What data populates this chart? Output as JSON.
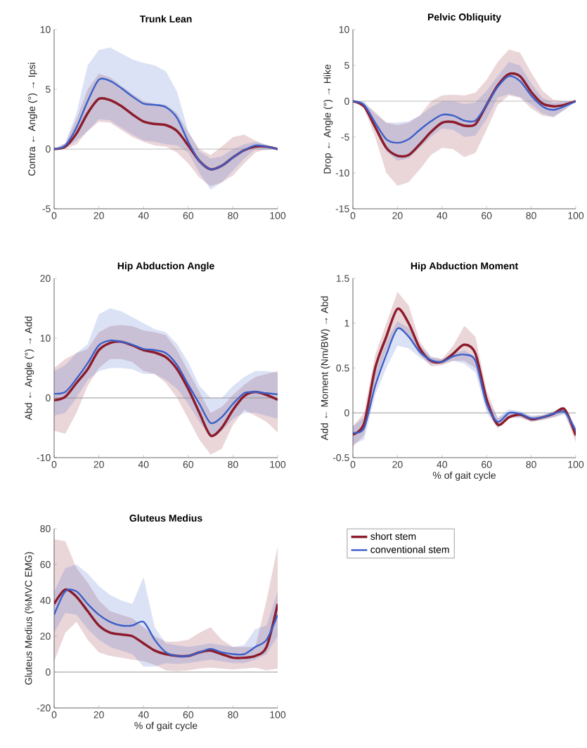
{
  "chart_data": [
    {
      "type": "line",
      "title": "Trunk Lean",
      "ylabel": "Contra ← Angle (°) → Ipsi",
      "x": [
        0,
        5,
        10,
        15,
        20,
        25,
        30,
        35,
        40,
        45,
        50,
        55,
        60,
        65,
        70,
        75,
        80,
        85,
        90,
        95,
        100
      ],
      "xlim": [
        0,
        100
      ],
      "xticks": [
        0,
        20,
        40,
        60,
        80,
        100
      ],
      "ylim": [
        -5,
        10
      ],
      "yticks": [
        -5,
        0,
        5,
        10
      ],
      "ref_lines": [
        {
          "axis": "y",
          "value": 0,
          "color": "#8c8c8c"
        }
      ],
      "series": [
        {
          "color": "#8c1c2c",
          "values": [
            0,
            0.2,
            1.3,
            3.0,
            4.2,
            4.1,
            3.6,
            2.9,
            2.3,
            2.1,
            2.0,
            1.5,
            0.3,
            -1.0,
            -1.7,
            -1.4,
            -0.7,
            -0.1,
            0.2,
            0.2,
            0
          ],
          "upper": [
            0,
            0.5,
            2.5,
            5,
            6.3,
            6,
            5.3,
            4.6,
            4,
            3.8,
            3.7,
            3,
            1.4,
            0,
            -0.5,
            0.2,
            1,
            1.2,
            0.7,
            0.3,
            0
          ],
          "lower": [
            0,
            0,
            0.4,
            1.5,
            2.3,
            2.2,
            1.6,
            1,
            0.6,
            0.3,
            0.2,
            -0.3,
            -1.2,
            -2.4,
            -3.1,
            -2.8,
            -2.2,
            -1.2,
            -0.3,
            0,
            0
          ]
        },
        {
          "color": "#3b5fc8",
          "values": [
            0,
            0.3,
            1.8,
            4,
            5.8,
            5.7,
            5.1,
            4.4,
            3.8,
            3.7,
            3.5,
            2.6,
            0.6,
            -1.0,
            -1.7,
            -1.4,
            -0.7,
            -0.1,
            0.3,
            0.2,
            0
          ],
          "upper": [
            0,
            0.5,
            3,
            7,
            8.3,
            8.5,
            8,
            7.5,
            7.2,
            7,
            6.5,
            4.8,
            1.5,
            -0.2,
            -0.8,
            -0.6,
            0,
            0.4,
            0.6,
            0.4,
            0
          ],
          "lower": [
            0,
            0.1,
            0.7,
            1.5,
            2.5,
            2.4,
            1.8,
            1.2,
            0.7,
            0.6,
            0.4,
            0.3,
            -0.3,
            -2,
            -3.4,
            -2.8,
            -1.8,
            -0.8,
            0,
            -0.1,
            0
          ]
        }
      ]
    },
    {
      "type": "line",
      "title": "Pelvic Obliquity",
      "ylabel": "Drop ← Angle (°) → Hike",
      "x": [
        0,
        5,
        10,
        15,
        20,
        25,
        30,
        35,
        40,
        45,
        50,
        55,
        60,
        65,
        70,
        75,
        80,
        85,
        90,
        95,
        100
      ],
      "xlim": [
        0,
        100
      ],
      "xticks": [
        0,
        20,
        40,
        60,
        80,
        100
      ],
      "ylim": [
        -15,
        10
      ],
      "yticks": [
        -15,
        -10,
        -5,
        0,
        5,
        10
      ],
      "ref_lines": [
        {
          "axis": "y",
          "value": 0,
          "color": "#8c8c8c"
        }
      ],
      "series": [
        {
          "color": "#8c1c2c",
          "values": [
            0,
            -0.7,
            -3.6,
            -6.5,
            -7.6,
            -7.5,
            -6,
            -4.3,
            -3,
            -2.9,
            -3.4,
            -3.2,
            -0.5,
            2.2,
            3.8,
            3.5,
            1.3,
            -0.3,
            -0.7,
            -0.5,
            0
          ],
          "upper": [
            0,
            -0.3,
            -1.5,
            -3,
            -3.3,
            -3.0,
            -2,
            0,
            0.8,
            0.9,
            0.8,
            1.2,
            3,
            5.5,
            7.2,
            6.8,
            4,
            1.5,
            0.2,
            0,
            0
          ],
          "lower": [
            0,
            -1,
            -5,
            -10,
            -11.8,
            -11.3,
            -9.5,
            -7.5,
            -6.5,
            -6.7,
            -7.8,
            -7.2,
            -4,
            -0.5,
            0.8,
            0.5,
            -1,
            -2,
            -2.2,
            -1.2,
            0
          ]
        },
        {
          "color": "#3b5fc8",
          "values": [
            0,
            -0.5,
            -3,
            -5.3,
            -5.8,
            -5.3,
            -4,
            -2.8,
            -1.9,
            -2.0,
            -2.7,
            -2.7,
            -0.5,
            2,
            3.5,
            2.8,
            0.8,
            -0.7,
            -1.2,
            -0.7,
            0
          ],
          "upper": [
            0,
            0,
            -1.8,
            -3,
            -3,
            -2.8,
            -2,
            -0.8,
            0,
            0,
            -0.4,
            -0.2,
            1.5,
            3.5,
            5.5,
            5,
            2.5,
            0.5,
            -0.2,
            0,
            0
          ],
          "lower": [
            0,
            -0.8,
            -4,
            -7,
            -8.3,
            -8,
            -6.5,
            -5,
            -3.8,
            -4,
            -5,
            -4.8,
            -2.5,
            0.5,
            1,
            0.6,
            -0.5,
            -1.7,
            -2.2,
            -1.2,
            0
          ]
        }
      ]
    },
    {
      "type": "line",
      "title": "Hip Abduction Angle",
      "ylabel": "Abd ← Angle (°) → Add",
      "x": [
        0,
        5,
        10,
        15,
        20,
        25,
        30,
        35,
        40,
        45,
        50,
        55,
        60,
        65,
        70,
        75,
        80,
        85,
        90,
        95,
        100
      ],
      "xlim": [
        0,
        100
      ],
      "xticks": [
        0,
        20,
        40,
        60,
        80,
        100
      ],
      "ylim": [
        -10,
        20
      ],
      "yticks": [
        -10,
        0,
        10,
        20
      ],
      "ref_lines": [
        {
          "axis": "y",
          "value": 0,
          "color": "#8c8c8c"
        }
      ],
      "series": [
        {
          "color": "#8c1c2c",
          "values": [
            -0.4,
            0.2,
            2.5,
            4.8,
            8.0,
            9.2,
            9.4,
            8.8,
            8.0,
            7.6,
            6.8,
            4.8,
            1.5,
            -2.5,
            -6.3,
            -5.0,
            -2.0,
            0.3,
            1.0,
            0.5,
            -0.3
          ],
          "upper": [
            5,
            6.5,
            7.5,
            8.2,
            11,
            12,
            12.2,
            12,
            11.3,
            11,
            10.5,
            8,
            4.5,
            1,
            -2.5,
            -1.5,
            0.5,
            2.2,
            3.5,
            4,
            4.5
          ],
          "lower": [
            -5.5,
            -6,
            -2.5,
            2,
            5,
            6.5,
            6.5,
            6,
            4.5,
            4,
            2.5,
            0,
            -3.5,
            -7,
            -9.5,
            -8.5,
            -4.5,
            -2,
            -3,
            -4,
            -5.8
          ]
        },
        {
          "color": "#3b5fc8",
          "values": [
            0.7,
            1.0,
            3.2,
            5.8,
            8.8,
            9.6,
            9.4,
            8.9,
            8.2,
            8.0,
            7.5,
            5.5,
            2.2,
            -1.0,
            -4.2,
            -3.2,
            -1.0,
            0.8,
            1.0,
            0.8,
            0.6
          ],
          "upper": [
            4.5,
            5.5,
            7.5,
            9,
            14,
            15,
            14.5,
            13.5,
            12.5,
            11.5,
            11,
            9,
            6,
            2,
            0,
            0,
            2,
            3.5,
            4.5,
            4.5,
            4.2
          ],
          "lower": [
            -3,
            -2.5,
            0,
            3,
            4.5,
            5,
            5,
            4.8,
            4,
            4,
            3,
            1.5,
            -1,
            -4,
            -6.5,
            -5.5,
            -3.5,
            -2.5,
            -2.5,
            -3,
            -3.5
          ]
        }
      ]
    },
    {
      "type": "line",
      "title": "Hip Abduction Moment",
      "ylabel": "Add ← Moment (Nm/BW) → Abd",
      "xlabel": "% of gait cycle",
      "x": [
        0,
        5,
        10,
        15,
        20,
        25,
        30,
        35,
        40,
        45,
        50,
        55,
        60,
        65,
        70,
        75,
        80,
        85,
        90,
        95,
        100
      ],
      "xlim": [
        0,
        100
      ],
      "xticks": [
        0,
        20,
        40,
        60,
        80,
        100
      ],
      "ylim": [
        -0.5,
        1.5
      ],
      "yticks": [
        -0.5,
        0,
        0.5,
        1,
        1.5
      ],
      "ref_lines": [
        {
          "axis": "y",
          "value": 0,
          "color": "#8c8c8c"
        }
      ],
      "series": [
        {
          "color": "#8c1c2c",
          "values": [
            -0.24,
            -0.12,
            0.5,
            0.85,
            1.16,
            1.0,
            0.72,
            0.58,
            0.57,
            0.66,
            0.76,
            0.66,
            0.15,
            -0.13,
            -0.05,
            -0.02,
            -0.07,
            -0.05,
            -0.01,
            0.04,
            -0.25
          ],
          "upper": [
            -0.15,
            0.0,
            0.65,
            1.0,
            1.35,
            1.2,
            0.8,
            0.62,
            0.6,
            0.75,
            0.97,
            0.85,
            0.25,
            -0.06,
            0.01,
            0.0,
            -0.04,
            -0.03,
            0.01,
            0.07,
            -0.18
          ],
          "lower": [
            -0.38,
            -0.25,
            0.35,
            0.7,
            0.95,
            0.85,
            0.65,
            0.52,
            0.53,
            0.58,
            0.58,
            0.5,
            0.05,
            -0.17,
            -0.06,
            -0.05,
            -0.1,
            -0.08,
            -0.05,
            0.0,
            -0.33
          ]
        },
        {
          "color": "#3b5fc8",
          "values": [
            -0.22,
            -0.17,
            0.3,
            0.65,
            0.94,
            0.85,
            0.68,
            0.59,
            0.57,
            0.63,
            0.65,
            0.58,
            0.1,
            -0.1,
            0.0,
            -0.01,
            -0.06,
            -0.05,
            -0.01,
            0.01,
            -0.2
          ],
          "upper": [
            -0.15,
            -0.05,
            0.45,
            0.8,
            1.02,
            0.95,
            0.75,
            0.63,
            0.6,
            0.66,
            0.7,
            0.62,
            0.16,
            -0.05,
            0.04,
            0.02,
            -0.03,
            -0.02,
            0.02,
            0.05,
            -0.15
          ],
          "lower": [
            -0.35,
            -0.3,
            0.2,
            0.5,
            0.75,
            0.72,
            0.62,
            0.54,
            0.55,
            0.58,
            0.55,
            0.45,
            0.0,
            -0.17,
            -0.05,
            -0.05,
            -0.1,
            -0.08,
            -0.05,
            -0.02,
            -0.28
          ]
        }
      ]
    },
    {
      "type": "line",
      "title": "Gluteus Medius",
      "ylabel": "Gluteus Medius (%MVC EMG)",
      "xlabel": "% of gait cycle",
      "x": [
        0,
        5,
        10,
        15,
        20,
        25,
        30,
        35,
        40,
        45,
        50,
        55,
        60,
        65,
        70,
        75,
        80,
        85,
        90,
        95,
        100
      ],
      "xlim": [
        0,
        100
      ],
      "xticks": [
        0,
        20,
        40,
        60,
        80,
        100
      ],
      "ylim": [
        -20,
        80
      ],
      "yticks": [
        -20,
        0,
        20,
        40,
        60,
        80
      ],
      "ref_lines": [
        {
          "axis": "y",
          "value": 0,
          "color": "#8c8c8c"
        }
      ],
      "legend": "right",
      "series": [
        {
          "name": "short stem",
          "color": "#8c1c2c",
          "values": [
            38,
            46,
            42,
            34,
            26,
            22,
            21,
            20,
            16,
            12,
            10,
            9,
            9,
            11,
            12,
            10,
            8,
            8,
            9,
            14,
            38
          ],
          "upper": [
            74,
            73,
            58,
            50,
            40,
            34,
            32,
            30,
            25,
            20,
            17,
            17,
            18,
            22,
            25,
            18,
            14,
            14,
            14,
            40,
            70
          ],
          "lower": [
            6,
            22,
            28,
            18,
            11,
            9,
            8,
            7,
            6,
            4,
            1,
            0.5,
            1,
            2,
            2.5,
            2,
            1.5,
            2,
            2.5,
            1,
            2
          ]
        },
        {
          "name": "conventional stem",
          "color": "#3b5fc8",
          "values": [
            32,
            45,
            45,
            38,
            32,
            28,
            26,
            26,
            28,
            18,
            11,
            9,
            9,
            11,
            13,
            11,
            10,
            10,
            14,
            18,
            32
          ],
          "upper": [
            45,
            58,
            60,
            55,
            48,
            43,
            40,
            38,
            53,
            25,
            16,
            15,
            14,
            15,
            16,
            15,
            14,
            15,
            24,
            26,
            45
          ],
          "lower": [
            22,
            33,
            32,
            24,
            18,
            14,
            12,
            10,
            3,
            3,
            5,
            4.5,
            5,
            6,
            7,
            6,
            5,
            5,
            7,
            10,
            20
          ]
        }
      ]
    }
  ]
}
